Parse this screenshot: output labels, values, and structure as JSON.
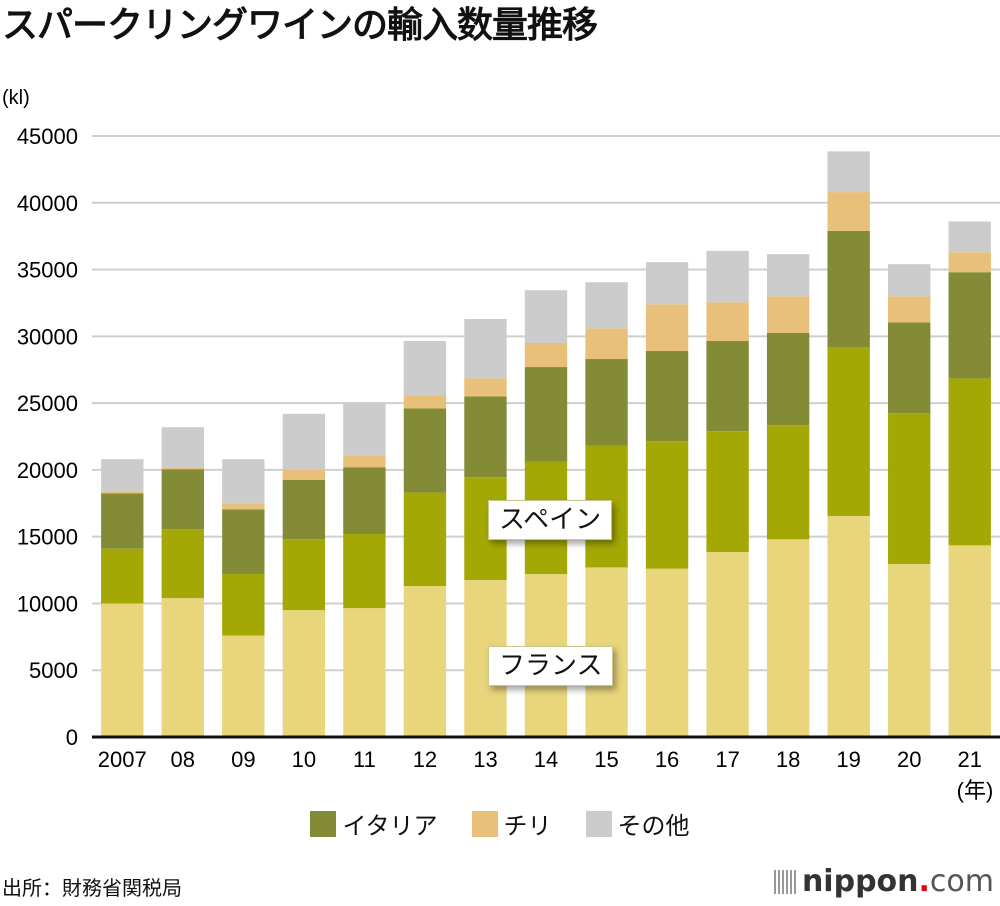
{
  "chart_data": {
    "type": "bar",
    "stacked": true,
    "title": "スパークリングワインの輸入数量推移",
    "ylabel": "(kl)",
    "xlabel": "(年)",
    "ylim": [
      0,
      45000
    ],
    "yticks": [
      0,
      5000,
      10000,
      15000,
      20000,
      25000,
      30000,
      35000,
      40000,
      45000
    ],
    "grid": true,
    "categories": [
      "2007",
      "08",
      "09",
      "10",
      "11",
      "12",
      "13",
      "14",
      "15",
      "16",
      "17",
      "18",
      "19",
      "20",
      "21"
    ],
    "series": [
      {
        "name": "フランス",
        "color": "#e8d57c",
        "values": [
          10000,
          10400,
          7600,
          9500,
          9650,
          11300,
          11750,
          12200,
          12700,
          12600,
          13850,
          14800,
          16550,
          12950,
          14350
        ]
      },
      {
        "name": "スペイン",
        "color": "#a3a805",
        "values": [
          4100,
          5150,
          4600,
          5300,
          5550,
          7000,
          7700,
          8400,
          9100,
          9550,
          9050,
          8550,
          12650,
          11300,
          12500
        ]
      },
      {
        "name": "イタリア",
        "color": "#838b36",
        "values": [
          4150,
          4500,
          4850,
          4450,
          5000,
          6300,
          6050,
          7100,
          6500,
          6750,
          6750,
          6900,
          8700,
          6800,
          7950
        ]
      },
      {
        "name": "チリ",
        "color": "#e8c07a",
        "values": [
          150,
          150,
          400,
          750,
          900,
          1000,
          1350,
          1800,
          2300,
          3500,
          2900,
          2750,
          2900,
          1950,
          1500
        ]
      },
      {
        "name": "その他",
        "color": "#cccccc",
        "values": [
          2400,
          3000,
          3350,
          4200,
          3950,
          4050,
          4450,
          3950,
          3450,
          3150,
          3850,
          3150,
          3050,
          2400,
          2300
        ]
      }
    ],
    "annotations": [
      "スペイン",
      "フランス"
    ],
    "legend": [
      "イタリア",
      "チリ",
      "その他"
    ],
    "legend_position": "bottom"
  },
  "source": "出所：財務省関税局",
  "logo": {
    "name": "nippon",
    "dot": ".",
    "tld": "com"
  }
}
